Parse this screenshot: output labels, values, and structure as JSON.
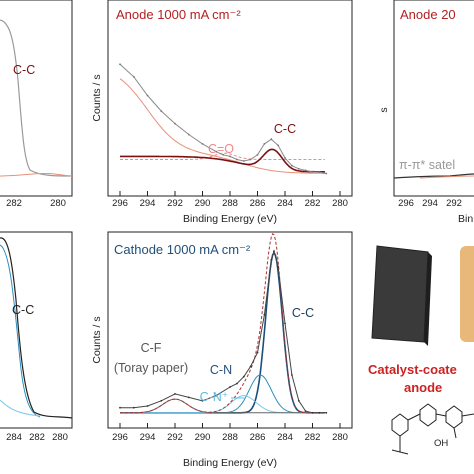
{
  "colors": {
    "anode_title": "#b22222",
    "cathode_title": "#1f4f7a",
    "raw": "#8a8a8a",
    "fit_envelope": "#7a1010",
    "bg_fit": "#e8907a",
    "cc_peak": "#7a1010",
    "co_peak": "#f08a8a",
    "cathode_cc": "#1a4f7a",
    "cathode_cn": "#2a8fc0",
    "cathode_cnplus": "#7fc8e8",
    "cathode_cf": "#666666"
  },
  "labels": {
    "left_top_cc": "C-C",
    "left_bottom_cc": "C-C",
    "right_top_title": "Anode 20",
    "right_top_satellite": "π-π* satel",
    "right_top_xlabel": "Bin",
    "catalyst_line1": "Catalyst-coate",
    "catalyst_line2": "anode",
    "oh_label": "OH"
  },
  "chart_data": [
    {
      "type": "line",
      "title": "Anode 1000 mA cm⁻²",
      "xlabel": "Binding Energy (eV)",
      "ylabel": "Counts / s",
      "xlim": [
        296,
        280
      ],
      "x_ticks": [
        "296",
        "294",
        "292",
        "290",
        "288",
        "286",
        "284",
        "282",
        "280"
      ],
      "annotations": [
        "C=O",
        "C-C"
      ],
      "series": [
        {
          "x": [
            296,
            295,
            294,
            293,
            292,
            291,
            290,
            289,
            288.5,
            288,
            287.5,
            287,
            286.5,
            286,
            285.5,
            285,
            284.5,
            284,
            283.5,
            283,
            282.5,
            282,
            281.5,
            281
          ],
          "y": [
            0.78,
            0.7,
            0.58,
            0.48,
            0.4,
            0.33,
            0.27,
            0.22,
            0.2,
            0.19,
            0.17,
            0.16,
            0.17,
            0.2,
            0.27,
            0.3,
            0.26,
            0.18,
            0.13,
            0.11,
            0.1,
            0.09,
            0.09,
            0.08
          ]
        }
      ]
    },
    {
      "type": "line",
      "title": "Cathode 1000 mA cm⁻²",
      "xlabel": "Binding Energy (eV)",
      "ylabel": "Counts / s",
      "xlim": [
        296,
        280
      ],
      "x_ticks": [
        "296",
        "294",
        "292",
        "290",
        "288",
        "286",
        "284",
        "282",
        "280"
      ],
      "annotations": [
        "C-F",
        "(Toray paper)",
        "C-N",
        "C-N⁺",
        "C-C"
      ],
      "series": [
        {
          "x": [
            296,
            295,
            294,
            293,
            292,
            291,
            290,
            289,
            288,
            287.5,
            287,
            286.5,
            286,
            285.5,
            285,
            284.8,
            284.5,
            284,
            283.5,
            283,
            282.5,
            282,
            281.5,
            281
          ],
          "y": [
            0.06,
            0.06,
            0.07,
            0.1,
            0.14,
            0.12,
            0.1,
            0.13,
            0.18,
            0.2,
            0.24,
            0.3,
            0.38,
            0.6,
            0.92,
            0.97,
            0.88,
            0.55,
            0.25,
            0.1,
            0.04,
            0.03,
            0.03,
            0.03
          ]
        }
      ]
    }
  ]
}
